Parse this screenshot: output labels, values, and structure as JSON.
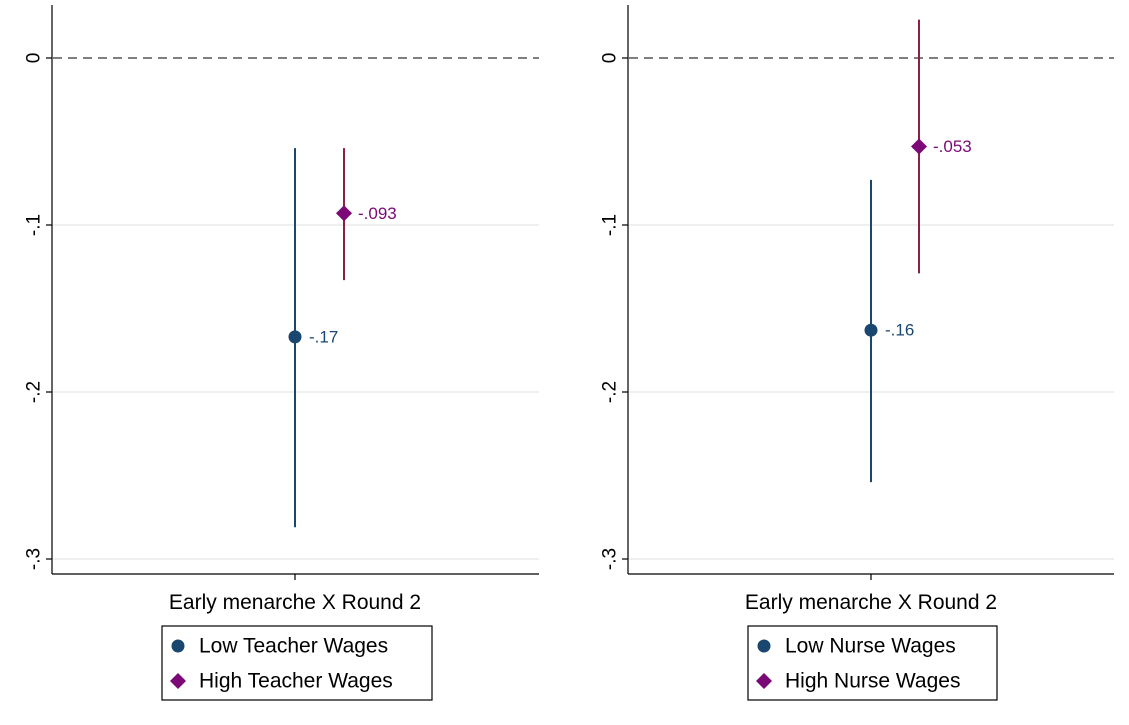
{
  "colors": {
    "low": "#1a476f",
    "high": "#7b0a77",
    "high_ci": "#8b1f45",
    "grid": "#eaeaea",
    "axis": "#000000",
    "refline": "#000000"
  },
  "chart_data": [
    {
      "type": "scatter",
      "chart": "coefficient-plot",
      "xlabel": "Early menarche X Round 2",
      "ylim": [
        -0.3,
        0.03
      ],
      "yticks": [
        0,
        -0.1,
        -0.2,
        -0.3
      ],
      "ytick_labels": [
        "0",
        "-.1",
        "-.2",
        "-.3"
      ],
      "reference_line": 0,
      "series": [
        {
          "name": "Low Teacher Wages",
          "key": "low",
          "marker": "circle",
          "estimate": -0.167,
          "ci_low": -0.281,
          "ci_high": -0.054,
          "label": "-.17"
        },
        {
          "name": "High Teacher Wages",
          "key": "high",
          "marker": "diamond",
          "estimate": -0.093,
          "ci_low": -0.133,
          "ci_high": -0.054,
          "label": "-.093"
        }
      ]
    },
    {
      "type": "scatter",
      "chart": "coefficient-plot",
      "xlabel": "Early menarche X Round 2",
      "ylim": [
        -0.3,
        0.03
      ],
      "yticks": [
        0,
        -0.1,
        -0.2,
        -0.3
      ],
      "ytick_labels": [
        "0",
        "-.1",
        "-.2",
        "-.3"
      ],
      "reference_line": 0,
      "series": [
        {
          "name": "Low Nurse Wages",
          "key": "low",
          "marker": "circle",
          "estimate": -0.163,
          "ci_low": -0.254,
          "ci_high": -0.073,
          "label": "-.16"
        },
        {
          "name": "High Nurse Wages",
          "key": "high",
          "marker": "diamond",
          "estimate": -0.053,
          "ci_low": -0.129,
          "ci_high": 0.023,
          "label": "-.053"
        }
      ]
    }
  ]
}
